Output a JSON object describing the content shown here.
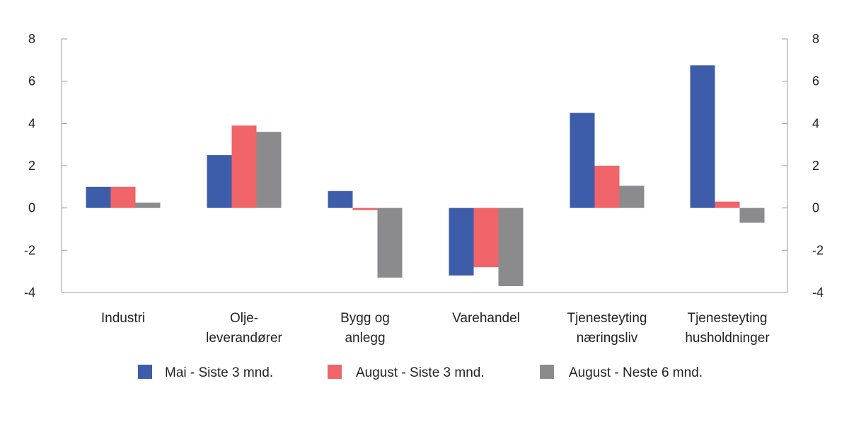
{
  "chart_data": {
    "type": "bar",
    "title": "",
    "xlabel": "",
    "ylabel": "",
    "ylim": [
      -4,
      8
    ],
    "yticks": [
      8,
      6,
      4,
      2,
      0,
      -2,
      -4
    ],
    "ytick_labels": [
      "8",
      "6",
      "4",
      "2",
      "0",
      "-2",
      "-4"
    ],
    "dual_y_axis": true,
    "grid": false,
    "legend_position": "bottom",
    "categories": [
      [
        "Industri"
      ],
      [
        "Olje-",
        "leverandører"
      ],
      [
        "Bygg og",
        "anlegg"
      ],
      [
        "Varehandel"
      ],
      [
        "Tjenesteyting",
        "næringsliv"
      ],
      [
        "Tjenesteyting",
        "husholdninger"
      ]
    ],
    "series": [
      {
        "name": "Mai - Siste 3 mnd.",
        "color": "#3d5dab",
        "values": [
          1.0,
          2.5,
          0.8,
          -3.2,
          4.5,
          6.75
        ]
      },
      {
        "name": "August - Siste 3 mnd.",
        "color": "#f0646a",
        "values": [
          1.0,
          3.9,
          -0.1,
          -2.8,
          2.0,
          0.3
        ]
      },
      {
        "name": "August - Neste 6 mnd.",
        "color": "#8b8b8e",
        "values": [
          0.25,
          3.6,
          -3.3,
          -3.7,
          1.05,
          -0.7
        ]
      }
    ]
  }
}
